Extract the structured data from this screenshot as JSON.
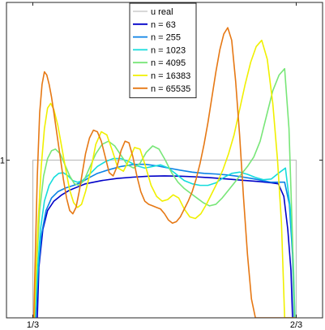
{
  "chart_data": {
    "type": "line",
    "title": "",
    "xlabel": "",
    "ylabel": "",
    "xlim": [
      0.3,
      0.7
    ],
    "ylim": [
      0.5,
      1.5
    ],
    "x_ticks": [
      {
        "value": 0.3333333,
        "label": "1/3"
      },
      {
        "value": 0.6666667,
        "label": "2/3"
      }
    ],
    "y_ticks": [
      {
        "value": 1,
        "label": "1"
      }
    ],
    "grid": false,
    "legend_position": "top",
    "series": [
      {
        "name": "u real",
        "color": "#c0c0c0",
        "x": [
          0.3333333,
          0.3333333,
          0.6666667,
          0.6666667
        ],
        "y": [
          0.5,
          1.0,
          1.0,
          0.5
        ]
      },
      {
        "name": "n = 63",
        "color": "#0000c8",
        "x": [
          0.339,
          0.341,
          0.346,
          0.352,
          0.36,
          0.37,
          0.38,
          0.39,
          0.4,
          0.42,
          0.44,
          0.46,
          0.48,
          0.5,
          0.52,
          0.54,
          0.56,
          0.58,
          0.6,
          0.62,
          0.635,
          0.644,
          0.651,
          0.656,
          0.66,
          0.662
        ],
        "y": [
          0.5,
          0.66,
          0.78,
          0.84,
          0.87,
          0.89,
          0.905,
          0.915,
          0.925,
          0.935,
          0.942,
          0.946,
          0.949,
          0.95,
          0.949,
          0.947,
          0.944,
          0.94,
          0.936,
          0.932,
          0.928,
          0.925,
          0.885,
          0.78,
          0.65,
          0.5
        ]
      },
      {
        "name": "n = 255",
        "color": "#0a82e6",
        "x": [
          0.337,
          0.34,
          0.344,
          0.35,
          0.357,
          0.365,
          0.375,
          0.385,
          0.395,
          0.405,
          0.415,
          0.43,
          0.445,
          0.46,
          0.475,
          0.49,
          0.505,
          0.52,
          0.535,
          0.55,
          0.565,
          0.58,
          0.595,
          0.61,
          0.625,
          0.635,
          0.645,
          0.652,
          0.658,
          0.662,
          0.664
        ],
        "y": [
          0.5,
          0.64,
          0.76,
          0.84,
          0.88,
          0.9,
          0.912,
          0.92,
          0.93,
          0.945,
          0.958,
          0.97,
          0.98,
          0.986,
          0.987,
          0.982,
          0.975,
          0.968,
          0.962,
          0.958,
          0.956,
          0.953,
          0.948,
          0.942,
          0.935,
          0.93,
          0.93,
          0.93,
          0.86,
          0.7,
          0.5
        ]
      },
      {
        "name": "n = 1023",
        "color": "#14dcdc",
        "x": [
          0.336,
          0.339,
          0.343,
          0.348,
          0.354,
          0.36,
          0.366,
          0.372,
          0.378,
          0.384,
          0.39,
          0.396,
          0.405,
          0.415,
          0.425,
          0.435,
          0.445,
          0.455,
          0.465,
          0.475,
          0.485,
          0.495,
          0.505,
          0.515,
          0.525,
          0.535,
          0.545,
          0.555,
          0.565,
          0.575,
          0.585,
          0.595,
          0.605,
          0.615,
          0.625,
          0.635,
          0.645,
          0.653,
          0.659,
          0.663,
          0.665
        ],
        "y": [
          0.5,
          0.64,
          0.78,
          0.87,
          0.92,
          0.945,
          0.958,
          0.96,
          0.95,
          0.935,
          0.93,
          0.935,
          0.955,
          0.98,
          0.995,
          1.005,
          1.005,
          0.995,
          0.982,
          0.975,
          0.98,
          0.985,
          0.975,
          0.955,
          0.935,
          0.925,
          0.92,
          0.92,
          0.928,
          0.945,
          0.958,
          0.962,
          0.955,
          0.945,
          0.938,
          0.94,
          0.96,
          0.975,
          0.85,
          0.68,
          0.5
        ]
      },
      {
        "name": "n = 4095",
        "color": "#78e678",
        "x": [
          0.3355,
          0.338,
          0.342,
          0.347,
          0.352,
          0.357,
          0.362,
          0.368,
          0.374,
          0.38,
          0.386,
          0.392,
          0.398,
          0.405,
          0.413,
          0.421,
          0.429,
          0.437,
          0.445,
          0.453,
          0.461,
          0.469,
          0.477,
          0.485,
          0.493,
          0.501,
          0.509,
          0.517,
          0.525,
          0.533,
          0.541,
          0.549,
          0.557,
          0.565,
          0.573,
          0.581,
          0.589,
          0.597,
          0.605,
          0.613,
          0.621,
          0.629,
          0.637,
          0.645,
          0.652,
          0.6575,
          0.662,
          0.6645
        ],
        "y": [
          0.5,
          0.66,
          0.84,
          0.95,
          1.005,
          1.03,
          1.035,
          1.02,
          0.985,
          0.95,
          0.925,
          0.92,
          0.935,
          0.975,
          1.02,
          1.05,
          1.06,
          1.045,
          1.015,
          0.985,
          0.975,
          0.99,
          1.025,
          1.045,
          1.035,
          1.0,
          0.96,
          0.93,
          0.91,
          0.895,
          0.88,
          0.865,
          0.855,
          0.86,
          0.88,
          0.905,
          0.93,
          0.955,
          0.98,
          1.01,
          1.06,
          1.14,
          1.22,
          1.27,
          1.29,
          1.1,
          0.75,
          0.5
        ]
      },
      {
        "name": "n = 16383",
        "color": "#f0f000",
        "x": [
          0.335,
          0.337,
          0.34,
          0.344,
          0.348,
          0.352,
          0.356,
          0.36,
          0.365,
          0.37,
          0.375,
          0.38,
          0.385,
          0.39,
          0.395,
          0.4,
          0.406,
          0.413,
          0.42,
          0.427,
          0.434,
          0.441,
          0.448,
          0.455,
          0.462,
          0.469,
          0.476,
          0.483,
          0.49,
          0.497,
          0.504,
          0.511,
          0.518,
          0.525,
          0.532,
          0.539,
          0.546,
          0.553,
          0.56,
          0.567,
          0.574,
          0.581,
          0.588,
          0.595,
          0.602,
          0.609,
          0.616,
          0.623,
          0.63,
          0.637,
          0.643,
          0.648,
          0.652,
          0.656,
          0.66,
          0.663,
          0.6655
        ],
        "y": [
          0.5,
          0.62,
          0.8,
          0.98,
          1.1,
          1.165,
          1.18,
          1.16,
          1.11,
          1.04,
          0.97,
          0.905,
          0.865,
          0.85,
          0.86,
          0.9,
          0.96,
          1.05,
          1.09,
          1.08,
          1.03,
          0.975,
          0.965,
          1.0,
          1.04,
          1.035,
          0.98,
          0.92,
          0.885,
          0.87,
          0.875,
          0.89,
          0.88,
          0.845,
          0.82,
          0.815,
          0.83,
          0.86,
          0.895,
          0.93,
          0.97,
          1.02,
          1.08,
          1.16,
          1.24,
          1.31,
          1.36,
          1.38,
          1.32,
          1.18,
          1.0,
          0.8,
          0.5,
          0.5,
          0.5,
          0.5,
          0.5
        ]
      },
      {
        "name": "n = 65535",
        "color": "#e67814",
        "x": [
          0.3345,
          0.3365,
          0.339,
          0.342,
          0.345,
          0.348,
          0.351,
          0.354,
          0.357,
          0.36,
          0.364,
          0.368,
          0.372,
          0.376,
          0.38,
          0.384,
          0.388,
          0.392,
          0.396,
          0.4,
          0.405,
          0.41,
          0.415,
          0.42,
          0.425,
          0.43,
          0.435,
          0.44,
          0.445,
          0.45,
          0.455,
          0.46,
          0.465,
          0.47,
          0.475,
          0.48,
          0.485,
          0.49,
          0.495,
          0.5,
          0.505,
          0.51,
          0.515,
          0.52,
          0.525,
          0.53,
          0.535,
          0.54,
          0.545,
          0.55,
          0.555,
          0.56,
          0.565,
          0.57,
          0.575,
          0.58,
          0.585,
          0.59,
          0.595,
          0.6,
          0.605,
          0.61,
          0.615,
          0.62,
          0.625,
          0.63,
          0.635,
          0.64,
          0.645,
          0.65,
          0.655,
          0.66,
          0.664,
          0.6665
        ],
        "y": [
          0.5,
          0.7,
          0.95,
          1.15,
          1.24,
          1.28,
          1.27,
          1.24,
          1.2,
          1.15,
          1.08,
          1.01,
          0.94,
          0.88,
          0.84,
          0.83,
          0.85,
          0.9,
          0.96,
          1.02,
          1.07,
          1.095,
          1.09,
          1.06,
          1.01,
          0.96,
          0.95,
          0.98,
          1.03,
          1.06,
          1.055,
          1.01,
          0.95,
          0.9,
          0.87,
          0.86,
          0.855,
          0.85,
          0.845,
          0.83,
          0.81,
          0.8,
          0.805,
          0.82,
          0.845,
          0.87,
          0.9,
          0.94,
          0.99,
          1.05,
          1.12,
          1.2,
          1.28,
          1.35,
          1.4,
          1.42,
          1.38,
          1.25,
          1.08,
          0.88,
          0.7,
          0.56,
          0.5,
          0.5,
          0.5,
          0.5,
          0.5,
          0.5,
          0.5,
          0.5,
          0.5,
          0.5,
          0.5,
          0.5
        ]
      }
    ]
  }
}
